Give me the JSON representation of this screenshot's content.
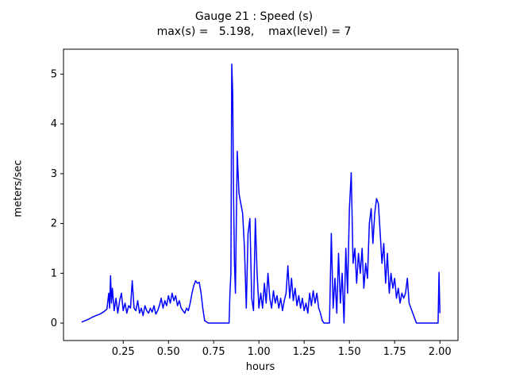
{
  "figure": {
    "title_line1": "Gauge 21 : Speed (s)",
    "title_line2": "max(s) =   5.198,    max(level) = 7"
  },
  "chart_data": {
    "type": "line",
    "title": "Gauge 21 : Speed (s)",
    "subtitle": "max(s) =   5.198,    max(level) = 7",
    "xlabel": "hours",
    "ylabel": "meters/sec",
    "legend": "none",
    "grid": false,
    "line_color": "#0000ff",
    "axis_color": "#000000",
    "max_s": 5.198,
    "max_level": 7,
    "xlim": [
      -0.08,
      2.1
    ],
    "ylim": [
      -0.35,
      5.5
    ],
    "xticks": [
      0.25,
      0.5,
      0.75,
      1.0,
      1.25,
      1.5,
      1.75,
      2.0
    ],
    "xtick_labels": [
      "0.25",
      "0.50",
      "0.75",
      "1.00",
      "1.25",
      "1.50",
      "1.75",
      "2.00"
    ],
    "yticks": [
      0,
      1,
      2,
      3,
      4,
      5
    ],
    "ytick_labels": [
      "0",
      "1",
      "2",
      "3",
      "4",
      "5"
    ],
    "points": [
      [
        0.02,
        0.02
      ],
      [
        0.04,
        0.05
      ],
      [
        0.06,
        0.08
      ],
      [
        0.08,
        0.12
      ],
      [
        0.1,
        0.15
      ],
      [
        0.12,
        0.18
      ],
      [
        0.14,
        0.22
      ],
      [
        0.16,
        0.28
      ],
      [
        0.17,
        0.6
      ],
      [
        0.175,
        0.3
      ],
      [
        0.18,
        0.95
      ],
      [
        0.185,
        0.4
      ],
      [
        0.19,
        0.7
      ],
      [
        0.2,
        0.25
      ],
      [
        0.21,
        0.5
      ],
      [
        0.22,
        0.2
      ],
      [
        0.23,
        0.45
      ],
      [
        0.24,
        0.6
      ],
      [
        0.25,
        0.25
      ],
      [
        0.26,
        0.4
      ],
      [
        0.27,
        0.2
      ],
      [
        0.28,
        0.35
      ],
      [
        0.29,
        0.3
      ],
      [
        0.3,
        0.85
      ],
      [
        0.31,
        0.3
      ],
      [
        0.32,
        0.25
      ],
      [
        0.33,
        0.45
      ],
      [
        0.34,
        0.2
      ],
      [
        0.35,
        0.3
      ],
      [
        0.36,
        0.15
      ],
      [
        0.37,
        0.35
      ],
      [
        0.38,
        0.25
      ],
      [
        0.39,
        0.2
      ],
      [
        0.4,
        0.3
      ],
      [
        0.41,
        0.22
      ],
      [
        0.42,
        0.35
      ],
      [
        0.43,
        0.18
      ],
      [
        0.44,
        0.25
      ],
      [
        0.45,
        0.35
      ],
      [
        0.46,
        0.5
      ],
      [
        0.47,
        0.3
      ],
      [
        0.48,
        0.45
      ],
      [
        0.49,
        0.35
      ],
      [
        0.5,
        0.55
      ],
      [
        0.51,
        0.4
      ],
      [
        0.52,
        0.6
      ],
      [
        0.53,
        0.45
      ],
      [
        0.54,
        0.55
      ],
      [
        0.55,
        0.35
      ],
      [
        0.56,
        0.45
      ],
      [
        0.57,
        0.3
      ],
      [
        0.58,
        0.25
      ],
      [
        0.59,
        0.2
      ],
      [
        0.6,
        0.3
      ],
      [
        0.61,
        0.25
      ],
      [
        0.62,
        0.4
      ],
      [
        0.63,
        0.6
      ],
      [
        0.64,
        0.75
      ],
      [
        0.65,
        0.85
      ],
      [
        0.66,
        0.8
      ],
      [
        0.67,
        0.82
      ],
      [
        0.68,
        0.6
      ],
      [
        0.69,
        0.3
      ],
      [
        0.7,
        0.05
      ],
      [
        0.72,
        0.0
      ],
      [
        0.74,
        0.0
      ],
      [
        0.76,
        0.0
      ],
      [
        0.78,
        0.0
      ],
      [
        0.8,
        0.0
      ],
      [
        0.82,
        0.0
      ],
      [
        0.835,
        0.0
      ],
      [
        0.84,
        0.6
      ],
      [
        0.845,
        1.0
      ],
      [
        0.85,
        5.198
      ],
      [
        0.855,
        4.6
      ],
      [
        0.86,
        2.5
      ],
      [
        0.865,
        1.2
      ],
      [
        0.87,
        0.6
      ],
      [
        0.875,
        2.0
      ],
      [
        0.88,
        3.45
      ],
      [
        0.885,
        3.0
      ],
      [
        0.89,
        2.6
      ],
      [
        0.9,
        2.4
      ],
      [
        0.91,
        2.2
      ],
      [
        0.92,
        1.5
      ],
      [
        0.93,
        0.3
      ],
      [
        0.94,
        1.8
      ],
      [
        0.95,
        2.1
      ],
      [
        0.96,
        0.5
      ],
      [
        0.97,
        0.25
      ],
      [
        0.98,
        2.1
      ],
      [
        0.99,
        1.0
      ],
      [
        1.0,
        0.3
      ],
      [
        1.01,
        0.6
      ],
      [
        1.02,
        0.3
      ],
      [
        1.03,
        0.8
      ],
      [
        1.04,
        0.4
      ],
      [
        1.05,
        1.0
      ],
      [
        1.06,
        0.5
      ],
      [
        1.07,
        0.3
      ],
      [
        1.08,
        0.65
      ],
      [
        1.09,
        0.4
      ],
      [
        1.1,
        0.55
      ],
      [
        1.11,
        0.3
      ],
      [
        1.12,
        0.5
      ],
      [
        1.13,
        0.25
      ],
      [
        1.14,
        0.45
      ],
      [
        1.15,
        0.6
      ],
      [
        1.16,
        1.15
      ],
      [
        1.17,
        0.5
      ],
      [
        1.18,
        0.9
      ],
      [
        1.19,
        0.45
      ],
      [
        1.2,
        0.7
      ],
      [
        1.21,
        0.35
      ],
      [
        1.22,
        0.55
      ],
      [
        1.23,
        0.3
      ],
      [
        1.24,
        0.5
      ],
      [
        1.25,
        0.25
      ],
      [
        1.26,
        0.4
      ],
      [
        1.27,
        0.2
      ],
      [
        1.28,
        0.6
      ],
      [
        1.29,
        0.35
      ],
      [
        1.3,
        0.65
      ],
      [
        1.31,
        0.4
      ],
      [
        1.32,
        0.6
      ],
      [
        1.33,
        0.3
      ],
      [
        1.34,
        0.2
      ],
      [
        1.35,
        0.05
      ],
      [
        1.36,
        0.0
      ],
      [
        1.37,
        0.0
      ],
      [
        1.38,
        0.0
      ],
      [
        1.39,
        0.0
      ],
      [
        1.4,
        1.8
      ],
      [
        1.41,
        0.3
      ],
      [
        1.42,
        0.9
      ],
      [
        1.43,
        0.2
      ],
      [
        1.44,
        1.4
      ],
      [
        1.45,
        0.4
      ],
      [
        1.46,
        1.0
      ],
      [
        1.47,
        0.0
      ],
      [
        1.48,
        1.5
      ],
      [
        1.49,
        0.6
      ],
      [
        1.5,
        2.3
      ],
      [
        1.51,
        3.02
      ],
      [
        1.52,
        1.2
      ],
      [
        1.53,
        1.5
      ],
      [
        1.54,
        0.8
      ],
      [
        1.55,
        1.4
      ],
      [
        1.56,
        1.0
      ],
      [
        1.57,
        1.5
      ],
      [
        1.58,
        0.7
      ],
      [
        1.59,
        1.2
      ],
      [
        1.6,
        0.9
      ],
      [
        1.61,
        2.0
      ],
      [
        1.62,
        2.3
      ],
      [
        1.63,
        1.6
      ],
      [
        1.64,
        2.2
      ],
      [
        1.65,
        2.5
      ],
      [
        1.66,
        2.4
      ],
      [
        1.67,
        1.8
      ],
      [
        1.68,
        1.2
      ],
      [
        1.69,
        1.6
      ],
      [
        1.7,
        0.8
      ],
      [
        1.71,
        1.4
      ],
      [
        1.72,
        0.6
      ],
      [
        1.73,
        1.0
      ],
      [
        1.74,
        0.7
      ],
      [
        1.75,
        0.9
      ],
      [
        1.76,
        0.5
      ],
      [
        1.77,
        0.7
      ],
      [
        1.78,
        0.4
      ],
      [
        1.79,
        0.6
      ],
      [
        1.8,
        0.5
      ],
      [
        1.81,
        0.6
      ],
      [
        1.82,
        0.9
      ],
      [
        1.83,
        0.4
      ],
      [
        1.84,
        0.3
      ],
      [
        1.85,
        0.2
      ],
      [
        1.86,
        0.1
      ],
      [
        1.87,
        0.0
      ],
      [
        1.88,
        0.0
      ],
      [
        1.9,
        0.0
      ],
      [
        1.92,
        0.0
      ],
      [
        1.94,
        0.0
      ],
      [
        1.96,
        0.0
      ],
      [
        1.98,
        0.0
      ],
      [
        1.99,
        0.0
      ],
      [
        1.995,
        1.02
      ],
      [
        2.0,
        0.2
      ]
    ]
  }
}
